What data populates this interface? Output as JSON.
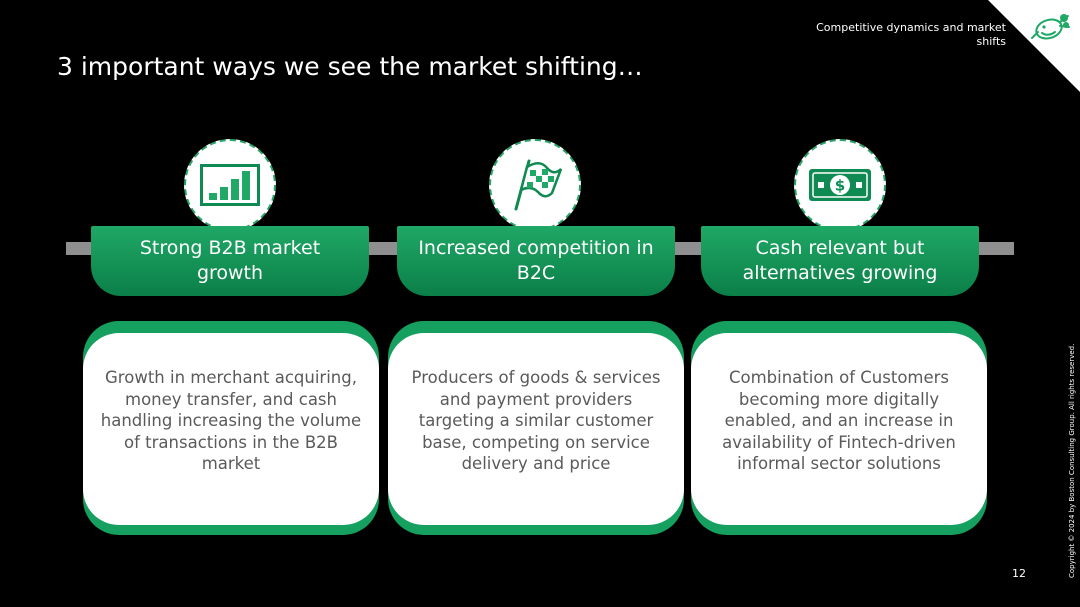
{
  "header": {
    "section_label": "Competitive dynamics and market shifts",
    "title": "3 important ways we see the market shifting…"
  },
  "columns": [
    {
      "icon": "bar-chart-icon",
      "heading": "Strong B2B market growth",
      "body": "Growth in merchant acquiring, money transfer, and cash handling increasing the volume of transactions in the B2B market"
    },
    {
      "icon": "checkered-flag-icon",
      "heading": "Increased competition in B2C",
      "body": "Producers of goods & services and payment providers targeting a similar customer base, competing on service delivery and price"
    },
    {
      "icon": "dollar-bill-icon",
      "heading": "Cash relevant but alternatives growing",
      "body": "Combination of Customers becoming more digitally enabled, and an increase in availability of Fintech-driven informal sector solutions"
    }
  ],
  "footer": {
    "page_number": "12",
    "copyright": "Copyright © 2024 by Boston Consulting Group. All rights reserved."
  },
  "colors": {
    "background": "#000000",
    "accent_green": "#1fa866",
    "bar_gray": "#8f8f8f"
  }
}
